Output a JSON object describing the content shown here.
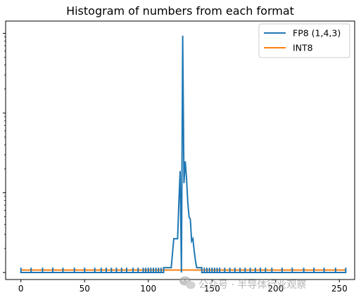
{
  "chart_data": {
    "type": "line",
    "title": "Histogram of numbers from each format",
    "xlabel": "",
    "ylabel": "",
    "xlim": [
      -12,
      262
    ],
    "ylim": [
      0,
      1
    ],
    "y_scale": "log",
    "grid": false,
    "legend_position": "top-right",
    "xticks": [
      0,
      50,
      100,
      150,
      200,
      250
    ],
    "series": [
      {
        "name": "FP8 (1,4,3)",
        "color": "#1f77b4",
        "points": [
          [
            0,
            0
          ],
          [
            0,
            0.02
          ],
          [
            0,
            0.02
          ],
          [
            0,
            0
          ],
          [
            8,
            0
          ],
          [
            8,
            0.02
          ],
          [
            8,
            0.02
          ],
          [
            8,
            0
          ],
          [
            17,
            0
          ],
          [
            17,
            0.02
          ],
          [
            17,
            0.02
          ],
          [
            17,
            0
          ],
          [
            25,
            0
          ],
          [
            25,
            0.02
          ],
          [
            25,
            0.02
          ],
          [
            25,
            0
          ],
          [
            33,
            0
          ],
          [
            33,
            0.02
          ],
          [
            33,
            0.02
          ],
          [
            33,
            0
          ],
          [
            42,
            0
          ],
          [
            42,
            0.02
          ],
          [
            42,
            0.02
          ],
          [
            42,
            0
          ],
          [
            50,
            0
          ],
          [
            50,
            0.02
          ],
          [
            50,
            0.02
          ],
          [
            50,
            0
          ],
          [
            58,
            0
          ],
          [
            58,
            0.02
          ],
          [
            58,
            0.02
          ],
          [
            58,
            0
          ],
          [
            63,
            0
          ],
          [
            63,
            0.02
          ],
          [
            63,
            0.02
          ],
          [
            63,
            0
          ],
          [
            67,
            0
          ],
          [
            67,
            0.02
          ],
          [
            67,
            0.02
          ],
          [
            67,
            0
          ],
          [
            71,
            0
          ],
          [
            71,
            0.02
          ],
          [
            71,
            0.02
          ],
          [
            71,
            0
          ],
          [
            75,
            0
          ],
          [
            75,
            0.02
          ],
          [
            75,
            0.02
          ],
          [
            75,
            0
          ],
          [
            79,
            0
          ],
          [
            79,
            0.02
          ],
          [
            79,
            0.02
          ],
          [
            79,
            0
          ],
          [
            83,
            0
          ],
          [
            83,
            0.02
          ],
          [
            83,
            0.02
          ],
          [
            83,
            0
          ],
          [
            88,
            0
          ],
          [
            88,
            0.02
          ],
          [
            88,
            0.02
          ],
          [
            88,
            0
          ],
          [
            92,
            0
          ],
          [
            92,
            0.02
          ],
          [
            92,
            0.02
          ],
          [
            92,
            0
          ],
          [
            96,
            0
          ],
          [
            96,
            0.02
          ],
          [
            96,
            0.02
          ],
          [
            96,
            0
          ],
          [
            98,
            0
          ],
          [
            98,
            0.02
          ],
          [
            98,
            0.02
          ],
          [
            98,
            0
          ],
          [
            100,
            0
          ],
          [
            100,
            0.02
          ],
          [
            100,
            0.02
          ],
          [
            100,
            0
          ],
          [
            102,
            0
          ],
          [
            102,
            0.02
          ],
          [
            102,
            0.02
          ],
          [
            102,
            0
          ],
          [
            104,
            0
          ],
          [
            104,
            0.02
          ],
          [
            104,
            0.02
          ],
          [
            104,
            0
          ],
          [
            106,
            0
          ],
          [
            106,
            0.02
          ],
          [
            106,
            0.02
          ],
          [
            106,
            0
          ],
          [
            108,
            0
          ],
          [
            108,
            0.02
          ],
          [
            108,
            0.02
          ],
          [
            108,
            0
          ],
          [
            110,
            0
          ],
          [
            110,
            0.02
          ],
          [
            110,
            0.02
          ],
          [
            110,
            0
          ],
          [
            112,
            0
          ],
          [
            112,
            0.02
          ],
          [
            118,
            0.02
          ],
          [
            120,
            0.14
          ],
          [
            123,
            0.14
          ],
          [
            124,
            0.29
          ],
          [
            125,
            0.42
          ],
          [
            126,
            0
          ],
          [
            127,
            0.98
          ],
          [
            128,
            0.37
          ],
          [
            129,
            0.46
          ],
          [
            130,
            0.39
          ],
          [
            131,
            0.29
          ],
          [
            132,
            0.23
          ],
          [
            133,
            0.22
          ],
          [
            134,
            0.13
          ],
          [
            135,
            0.14
          ],
          [
            136,
            0.09
          ],
          [
            137,
            0.05
          ],
          [
            138,
            0.02
          ],
          [
            142,
            0.02
          ],
          [
            142,
            0
          ],
          [
            144,
            0
          ],
          [
            144,
            0.02
          ],
          [
            144,
            0.02
          ],
          [
            144,
            0
          ],
          [
            146,
            0
          ],
          [
            146,
            0.02
          ],
          [
            146,
            0.02
          ],
          [
            146,
            0
          ],
          [
            148,
            0
          ],
          [
            148,
            0.02
          ],
          [
            148,
            0.02
          ],
          [
            148,
            0
          ],
          [
            150,
            0
          ],
          [
            150,
            0.02
          ],
          [
            150,
            0.02
          ],
          [
            150,
            0
          ],
          [
            152,
            0
          ],
          [
            152,
            0.02
          ],
          [
            152,
            0.02
          ],
          [
            152,
            0
          ],
          [
            154,
            0
          ],
          [
            154,
            0.02
          ],
          [
            154,
            0.02
          ],
          [
            154,
            0
          ],
          [
            156,
            0
          ],
          [
            156,
            0.02
          ],
          [
            156,
            0.02
          ],
          [
            156,
            0
          ],
          [
            160,
            0
          ],
          [
            160,
            0.02
          ],
          [
            160,
            0.02
          ],
          [
            160,
            0
          ],
          [
            164,
            0
          ],
          [
            164,
            0.02
          ],
          [
            164,
            0.02
          ],
          [
            164,
            0
          ],
          [
            168,
            0
          ],
          [
            168,
            0.02
          ],
          [
            168,
            0.02
          ],
          [
            168,
            0
          ],
          [
            172,
            0
          ],
          [
            172,
            0.02
          ],
          [
            172,
            0.02
          ],
          [
            172,
            0
          ],
          [
            176,
            0
          ],
          [
            176,
            0.02
          ],
          [
            176,
            0.02
          ],
          [
            176,
            0
          ],
          [
            180,
            0
          ],
          [
            180,
            0.02
          ],
          [
            180,
            0.02
          ],
          [
            180,
            0
          ],
          [
            184,
            0
          ],
          [
            184,
            0.02
          ],
          [
            184,
            0.02
          ],
          [
            184,
            0
          ],
          [
            188,
            0
          ],
          [
            188,
            0.02
          ],
          [
            188,
            0.02
          ],
          [
            188,
            0
          ],
          [
            192,
            0
          ],
          [
            192,
            0.02
          ],
          [
            192,
            0.02
          ],
          [
            192,
            0
          ],
          [
            197,
            0
          ],
          [
            197,
            0.02
          ],
          [
            197,
            0.02
          ],
          [
            197,
            0
          ],
          [
            205,
            0
          ],
          [
            205,
            0.02
          ],
          [
            205,
            0.02
          ],
          [
            205,
            0
          ],
          [
            213,
            0
          ],
          [
            213,
            0.02
          ],
          [
            213,
            0.02
          ],
          [
            213,
            0
          ],
          [
            222,
            0
          ],
          [
            222,
            0.02
          ],
          [
            222,
            0.02
          ],
          [
            222,
            0
          ],
          [
            230,
            0
          ],
          [
            230,
            0.02
          ],
          [
            230,
            0.02
          ],
          [
            230,
            0
          ],
          [
            238,
            0
          ],
          [
            238,
            0.02
          ],
          [
            238,
            0.02
          ],
          [
            238,
            0
          ],
          [
            247,
            0
          ],
          [
            247,
            0.02
          ],
          [
            247,
            0.02
          ],
          [
            247,
            0
          ],
          [
            255,
            0
          ],
          [
            255,
            0.02
          ],
          [
            255,
            0.02
          ],
          [
            255,
            0
          ]
        ]
      },
      {
        "name": "INT8",
        "color": "#ff7f0e",
        "points": [
          [
            0,
            0.01
          ],
          [
            255,
            0.01
          ]
        ]
      }
    ]
  },
  "watermark": {
    "text": "公众号 · 半导体行业观察",
    "icon": "wechat-icon"
  }
}
